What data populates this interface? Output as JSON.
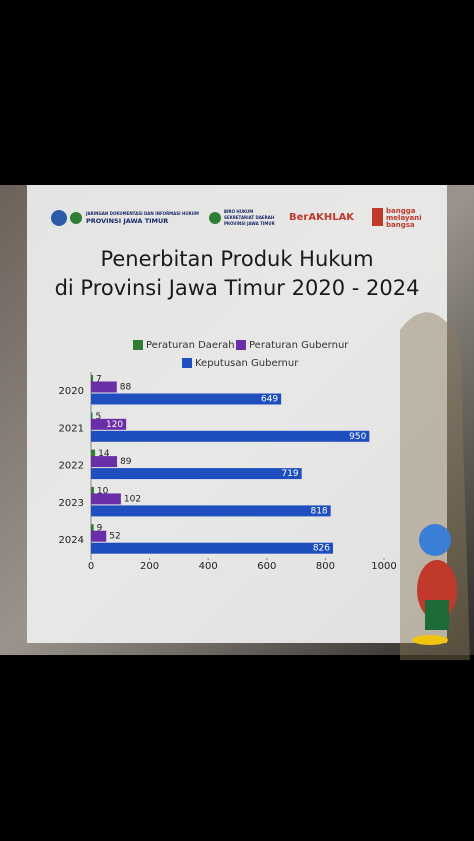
{
  "logos": {
    "jdih_line1": "JARINGAN DOKUMENTASI DAN INFORMASI HUKUM",
    "jdih_line2": "PROVINSI JAWA TIMUR",
    "biro_line1": "BIRO HUKUM",
    "biro_line2": "SEKRETARIAT DAERAH",
    "biro_line3": "PROVINSI JAWA TIMUR",
    "berakhlak": "BerAKHLAK",
    "bangga": [
      "bangga",
      "melayani",
      "bangsa"
    ]
  },
  "chart_data": {
    "type": "hbar",
    "title": [
      "Penerbitan Produk Hukum",
      "di Provinsi Jawa Timur 2020 - 2024"
    ],
    "categories": [
      "2020",
      "2021",
      "2022",
      "2023",
      "2024"
    ],
    "series": [
      {
        "name": "Peraturan Daerah",
        "color": "#2e7d32",
        "values": [
          7,
          5,
          14,
          10,
          9
        ]
      },
      {
        "name": "Peraturan Gubernur",
        "color": "#6a2fa8",
        "values": [
          88,
          120,
          89,
          102,
          52
        ]
      },
      {
        "name": "Keputusan Gubernur",
        "color": "#1f4fbf",
        "values": [
          649,
          950,
          719,
          818,
          826
        ]
      }
    ],
    "xlim": [
      0,
      1000
    ],
    "xticks": [
      0,
      200,
      400,
      600,
      800,
      1000
    ]
  }
}
